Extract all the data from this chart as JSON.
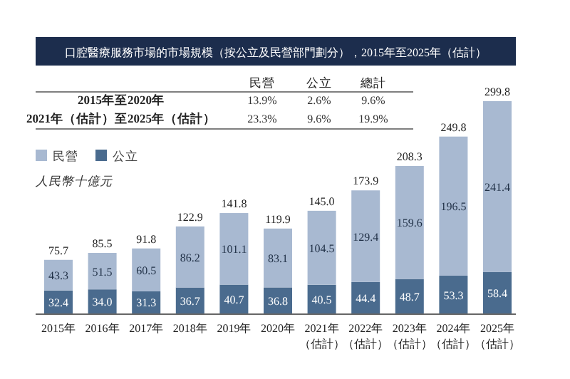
{
  "chart_data": {
    "type": "bar",
    "title": "口腔醫療服務市場的市場規模（按公立及民營部門劃分），2015年至2025年（估計）",
    "ylabel": "人民幣十億元",
    "categories": [
      "2015年",
      "2016年",
      "2017年",
      "2018年",
      "2019年",
      "2020年",
      "2021年（估計）",
      "2022年（估計）",
      "2023年（估計）",
      "2024年（估計）",
      "2025年（估計）"
    ],
    "series": [
      {
        "name": "公立",
        "color": "#4a6b8e",
        "values": [
          32.4,
          34.0,
          31.3,
          36.7,
          40.7,
          36.8,
          40.5,
          44.4,
          48.7,
          53.3,
          58.4
        ],
        "value_labels": [
          "32.4",
          "34.0",
          "31.3",
          "36.7",
          "40.7",
          "36.8",
          "40.5",
          "44.4",
          "48.7",
          "53.3",
          "58.4"
        ]
      },
      {
        "name": "民營",
        "color": "#a8b9d1",
        "values": [
          43.3,
          51.5,
          60.5,
          86.2,
          101.1,
          83.1,
          104.5,
          129.4,
          159.6,
          196.5,
          241.4
        ],
        "value_labels": [
          "43.3",
          "51.5",
          "60.5",
          "86.2",
          "101.1",
          "83.1",
          "104.5",
          "129.4",
          "159.6",
          "196.5",
          "241.4"
        ]
      }
    ],
    "stacked": true,
    "totals": [
      "75.7",
      "85.5",
      "91.8",
      "122.9",
      "141.8",
      "119.9",
      "145.0",
      "173.9",
      "208.3",
      "249.8",
      "299.8"
    ],
    "legend": "top left",
    "annotations": [
      "民營",
      "公立",
      "總計",
      "2015年至2020年",
      "13.9%",
      "2.6%",
      "9.6%",
      "2021年（估計）至2025年（估計）",
      "23.3%",
      "9.6%",
      "19.9%"
    ]
  }
}
